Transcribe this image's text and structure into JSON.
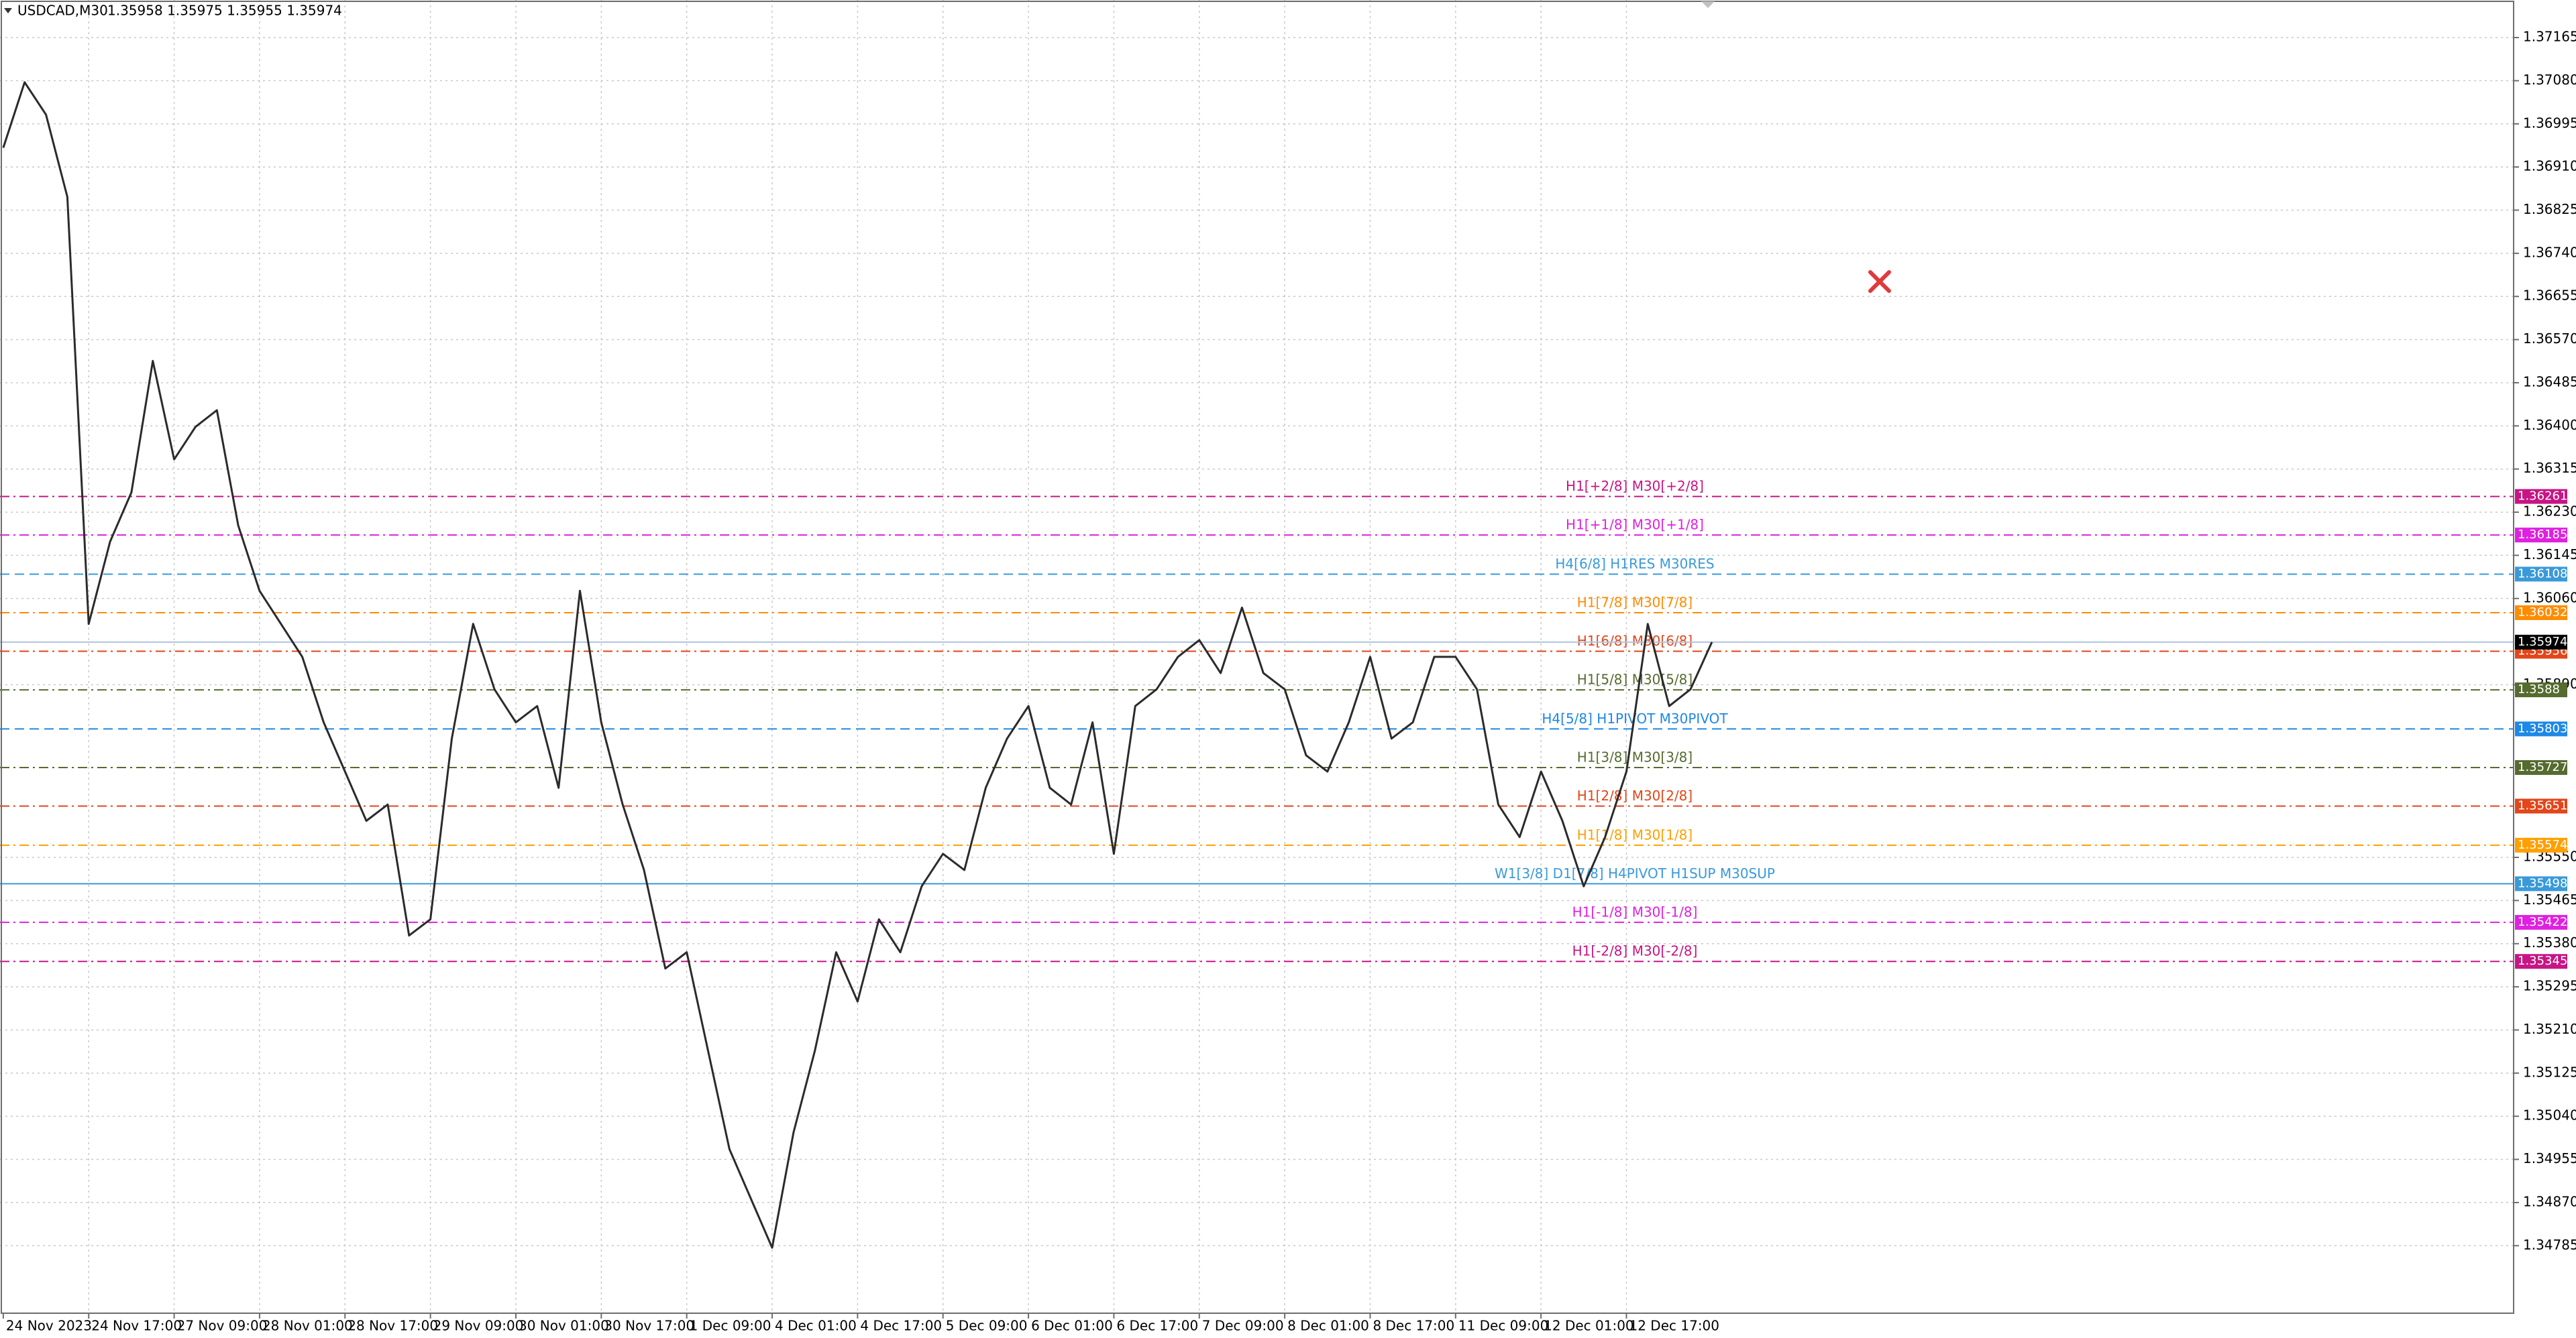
{
  "chart_data": {
    "type": "line",
    "title": "USDCAD,M30",
    "subtitle": "1.35958 1.35975 1.35955 1.35974",
    "color": "#2b2b2b",
    "grid": true,
    "categories": [
      "24 Nov 2023",
      null,
      null,
      null,
      "24 Nov 17:00",
      null,
      null,
      null,
      "27 Nov 09:00",
      null,
      null,
      null,
      "28 Nov 01:00",
      null,
      null,
      null,
      "28 Nov 17:00",
      null,
      null,
      null,
      "29 Nov 09:00",
      null,
      null,
      null,
      "30 Nov 01:00",
      null,
      null,
      null,
      "30 Nov 17:00",
      null,
      null,
      null,
      "1 Dec 09:00",
      null,
      null,
      null,
      "4 Dec 01:00",
      null,
      null,
      null,
      "4 Dec 17:00",
      null,
      null,
      null,
      "5 Dec 09:00",
      null,
      null,
      null,
      "6 Dec 01:00",
      null,
      null,
      null,
      "6 Dec 17:00",
      null,
      null,
      null,
      "7 Dec 09:00",
      null,
      null,
      null,
      "8 Dec 01:00",
      null,
      null,
      null,
      "8 Dec 17:00",
      null,
      null,
      null,
      "11 Dec 09:00",
      null,
      null,
      null,
      "12 Dec 01:00",
      null,
      null,
      null,
      "12 Dec 17:00",
      null,
      null,
      null,
      null
    ],
    "values": [
      1.36948,
      1.37077,
      1.37013,
      1.36851,
      1.3601,
      1.36172,
      1.36269,
      1.36528,
      1.36334,
      1.36398,
      1.36431,
      1.36204,
      1.36075,
      1.3601,
      1.35945,
      1.35816,
      1.35719,
      1.35622,
      1.35654,
      1.35396,
      1.35428,
      1.35784,
      1.3601,
      1.35881,
      1.35816,
      1.35848,
      1.35687,
      1.36075,
      1.35816,
      1.35654,
      1.35525,
      1.35331,
      1.35363,
      1.35169,
      1.34975,
      1.34878,
      1.34781,
      1.35008,
      1.35169,
      1.35363,
      1.35266,
      1.35428,
      1.35363,
      1.35493,
      1.35557,
      1.35525,
      1.35687,
      1.35784,
      1.35848,
      1.35687,
      1.35654,
      1.35816,
      1.35557,
      1.35848,
      1.35881,
      1.35945,
      1.35978,
      1.35913,
      1.36042,
      1.35913,
      1.35881,
      1.35751,
      1.35719,
      1.35816,
      1.35945,
      1.35784,
      1.35816,
      1.35945,
      1.35945,
      1.35881,
      1.35654,
      1.3559,
      1.35719,
      1.35622,
      1.35493,
      1.3559,
      1.35719,
      1.3601,
      1.35848,
      1.35881,
      1.35974
    ],
    "ylim": [
      1.34652,
      1.37239
    ],
    "yticks": [
      1.37165,
      {
        "value": 1.3708,
        "label": "1.37080"
      },
      1.36995,
      {
        "value": 1.3691,
        "label": "1.36910"
      },
      1.36825,
      {
        "value": 1.3674,
        "label": "1.36740"
      },
      1.36655,
      {
        "value": 1.3657,
        "label": "1.36570"
      },
      1.36485,
      {
        "value": 1.364,
        "label": "1.36400"
      },
      1.36315,
      {
        "value": 1.3623,
        "label": "1.36230"
      },
      1.36145,
      {
        "value": 1.3606,
        "label": "1.36060"
      },
      {
        "value": 1.3589,
        "label": "1.35890"
      },
      {
        "value": 1.3555,
        "label": "1.35550"
      },
      1.35465,
      {
        "value": 1.3538,
        "label": "1.35380"
      },
      1.35295,
      {
        "value": 1.3521,
        "label": "1.35210"
      },
      1.35125,
      {
        "value": 1.3504,
        "label": "1.35040"
      },
      1.34955,
      {
        "value": 1.3487,
        "label": "1.34870"
      },
      1.34785
    ],
    "levels": [
      {
        "value": 1.36261,
        "text": "H1[+2/8] M30[+2/8]",
        "color": "#c71585",
        "style": "dashdot"
      },
      {
        "value": 1.36185,
        "text": "H1[+1/8] M30[+1/8]",
        "color": "#e020e0",
        "style": "dashdot"
      },
      {
        "value": 1.36108,
        "text": "H4[6/8] H1RES M30RES",
        "color": "#3a9ad9",
        "style": "dash"
      },
      {
        "value": 1.36032,
        "text": "H1[7/8] M30[7/8]",
        "color": "#ff8c00",
        "style": "dashdot"
      },
      {
        "value": 1.35956,
        "text": "H1[6/8] M30[6/8]",
        "color": "#e2461a",
        "style": "dashdot"
      },
      {
        "value": 1.3588,
        "text": "H1[5/8] M30[5/8]",
        "color": "#556b2f",
        "style": "dashdot"
      },
      {
        "value": 1.35803,
        "text": "H4[5/8] H1PIVOT M30PIVOT",
        "color": "#1e88e5",
        "style": "dash"
      },
      {
        "value": 1.35727,
        "text": "H1[3/8] M30[3/8]",
        "color": "#556b2f",
        "style": "dashdot"
      },
      {
        "value": 1.35651,
        "text": "H1[2/8] M30[2/8]",
        "color": "#e2461a",
        "style": "dashdot"
      },
      {
        "value": 1.35574,
        "text": "H1[1/8] M30[1/8]",
        "color": "#ff9f00",
        "style": "dashdot"
      },
      {
        "value": 1.35498,
        "text": "W1[3/8] D1[7/8] H4PIVOT H1SUP M30SUP",
        "color": "#3a9ad9",
        "style": "solid"
      },
      {
        "value": 1.35422,
        "text": "H1[-1/8] M30[-1/8]",
        "color": "#e020e0",
        "style": "dashdot"
      },
      {
        "value": 1.35345,
        "text": "H1[-2/8] M30[-2/8]",
        "color": "#c71585",
        "style": "dashdot"
      }
    ],
    "last_price": {
      "value": 1.35974,
      "color": "#000000"
    }
  }
}
